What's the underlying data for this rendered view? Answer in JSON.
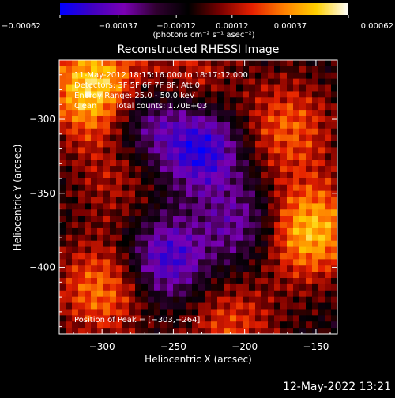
{
  "chart_data": {
    "type": "heatmap",
    "title": "Reconstructed RHESSI Image",
    "xlabel": "Heliocentric X (arcsec)",
    "ylabel": "Heliocentric Y (arcsec)",
    "xlim": [
      -330,
      -135
    ],
    "ylim": [
      -445,
      -260
    ],
    "xticks": [
      -300,
      -250,
      -200,
      -150
    ],
    "yticks": [
      -300,
      -350,
      -400
    ],
    "colorbar": {
      "unit_label": "(photons cm⁻² s⁻¹ asec⁻²)",
      "range": [
        -0.00062,
        0.00062
      ],
      "ticks": [
        {
          "value": -0.00062,
          "label": "−0.00062"
        },
        {
          "value": -0.00037,
          "label": "−0.00037"
        },
        {
          "value": -0.00012,
          "label": "−0.00012"
        },
        {
          "value": 0.00012,
          "label": "0.00012"
        },
        {
          "value": 0.00037,
          "label": "0.00037"
        },
        {
          "value": 0.00062,
          "label": "0.00062"
        }
      ],
      "colors": [
        "#0000ff",
        "#4000c0",
        "#7a00b4",
        "#300030",
        "#000000",
        "#7a0000",
        "#e62000",
        "#ff8000",
        "#ffd000",
        "#ffffff"
      ]
    },
    "annotations": [
      "11-May-2012 18:15:16.000 to 18:17:12.000",
      "Detectors: 3F 5F 6F 7F 8F, Att 0",
      "Energy Range: 25.0 - 50.0 keV",
      "Clean",
      "Total counts: 1.70E+03",
      "Position of Peak = [−303,−264]"
    ],
    "peak": {
      "x": -303,
      "y": -264
    },
    "bright_regions": [
      {
        "x": -305,
        "y": -280,
        "intensity": 0.00062
      },
      {
        "x": -155,
        "y": -375,
        "intensity": 0.00055
      },
      {
        "x": -170,
        "y": -305,
        "intensity": 0.00035
      },
      {
        "x": -300,
        "y": -415,
        "intensity": 0.0004
      },
      {
        "x": -240,
        "y": -270,
        "intensity": 0.00025
      },
      {
        "x": -290,
        "y": -340,
        "intensity": 0.0002
      },
      {
        "x": -210,
        "y": -440,
        "intensity": 0.0003
      }
    ],
    "dim_regions": [
      {
        "x": -230,
        "y": -320,
        "intensity": -0.0005
      },
      {
        "x": -255,
        "y": -395,
        "intensity": -0.00045
      },
      {
        "x": -200,
        "y": -370,
        "intensity": -0.0003
      },
      {
        "x": -270,
        "y": -300,
        "intensity": -0.00035
      }
    ]
  },
  "footer": {
    "timestamp": "12-May-2022 13:21"
  }
}
